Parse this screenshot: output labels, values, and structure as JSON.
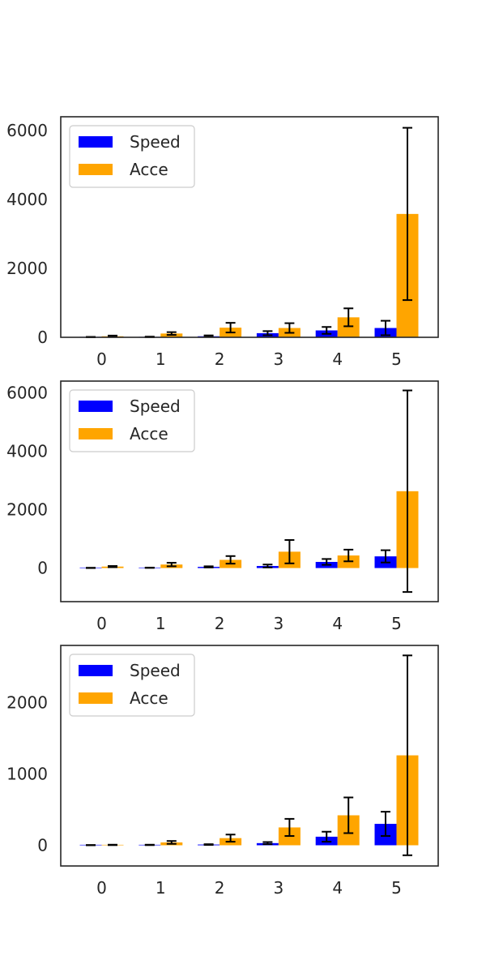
{
  "colors": {
    "speed": "#0000ff",
    "acce": "#ffa500",
    "error": "#000000",
    "axes": "#262626",
    "legend_border": "#cccccc"
  },
  "chart_data": [
    {
      "type": "bar",
      "categories": [
        "0",
        "1",
        "2",
        "3",
        "4",
        "5"
      ],
      "ylim": [
        0,
        6400
      ],
      "yticks": [
        0,
        2000,
        4000,
        6000
      ],
      "grid": false,
      "legend": {
        "placement": "top-left",
        "entries": [
          "Speed",
          "Acce"
        ]
      },
      "series": [
        {
          "name": "Speed",
          "values": [
            5,
            10,
            30,
            120,
            200,
            270
          ],
          "err_low": [
            5,
            8,
            20,
            60,
            100,
            210
          ],
          "err_high": [
            8,
            10,
            25,
            60,
            100,
            210
          ]
        },
        {
          "name": "Acce",
          "values": [
            30,
            110,
            280,
            270,
            580,
            3580
          ],
          "err_low": [
            20,
            40,
            140,
            140,
            260,
            2500
          ],
          "err_high": [
            20,
            40,
            140,
            140,
            260,
            2500
          ]
        }
      ]
    },
    {
      "type": "bar",
      "categories": [
        "0",
        "1",
        "2",
        "3",
        "4",
        "5"
      ],
      "ylim": [
        -1150,
        6400
      ],
      "yticks": [
        0,
        2000,
        4000,
        6000
      ],
      "grid": false,
      "legend": {
        "placement": "top-left",
        "entries": [
          "Speed",
          "Acce"
        ]
      },
      "series": [
        {
          "name": "Speed",
          "values": [
            5,
            10,
            40,
            70,
            210,
            400
          ],
          "err_low": [
            5,
            5,
            20,
            50,
            100,
            210
          ],
          "err_high": [
            5,
            5,
            20,
            50,
            100,
            210
          ]
        },
        {
          "name": "Acce",
          "values": [
            50,
            120,
            280,
            560,
            430,
            2630
          ],
          "err_low": [
            20,
            60,
            130,
            400,
            200,
            3450
          ],
          "err_high": [
            20,
            60,
            130,
            400,
            200,
            3450
          ]
        }
      ]
    },
    {
      "type": "bar",
      "categories": [
        "0",
        "1",
        "2",
        "3",
        "4",
        "5"
      ],
      "ylim": [
        -290,
        2800
      ],
      "yticks": [
        0,
        1000,
        2000
      ],
      "grid": false,
      "legend": {
        "placement": "top-left",
        "entries": [
          "Speed",
          "Acce"
        ]
      },
      "series": [
        {
          "name": "Speed",
          "values": [
            2,
            5,
            10,
            30,
            120,
            300
          ],
          "err_low": [
            2,
            3,
            5,
            15,
            70,
            170
          ],
          "err_high": [
            2,
            3,
            5,
            15,
            70,
            170
          ]
        },
        {
          "name": "Acce",
          "values": [
            5,
            40,
            100,
            250,
            420,
            1260
          ],
          "err_low": [
            3,
            20,
            50,
            120,
            250,
            1400
          ],
          "err_high": [
            3,
            20,
            50,
            120,
            250,
            1400
          ]
        }
      ]
    }
  ]
}
